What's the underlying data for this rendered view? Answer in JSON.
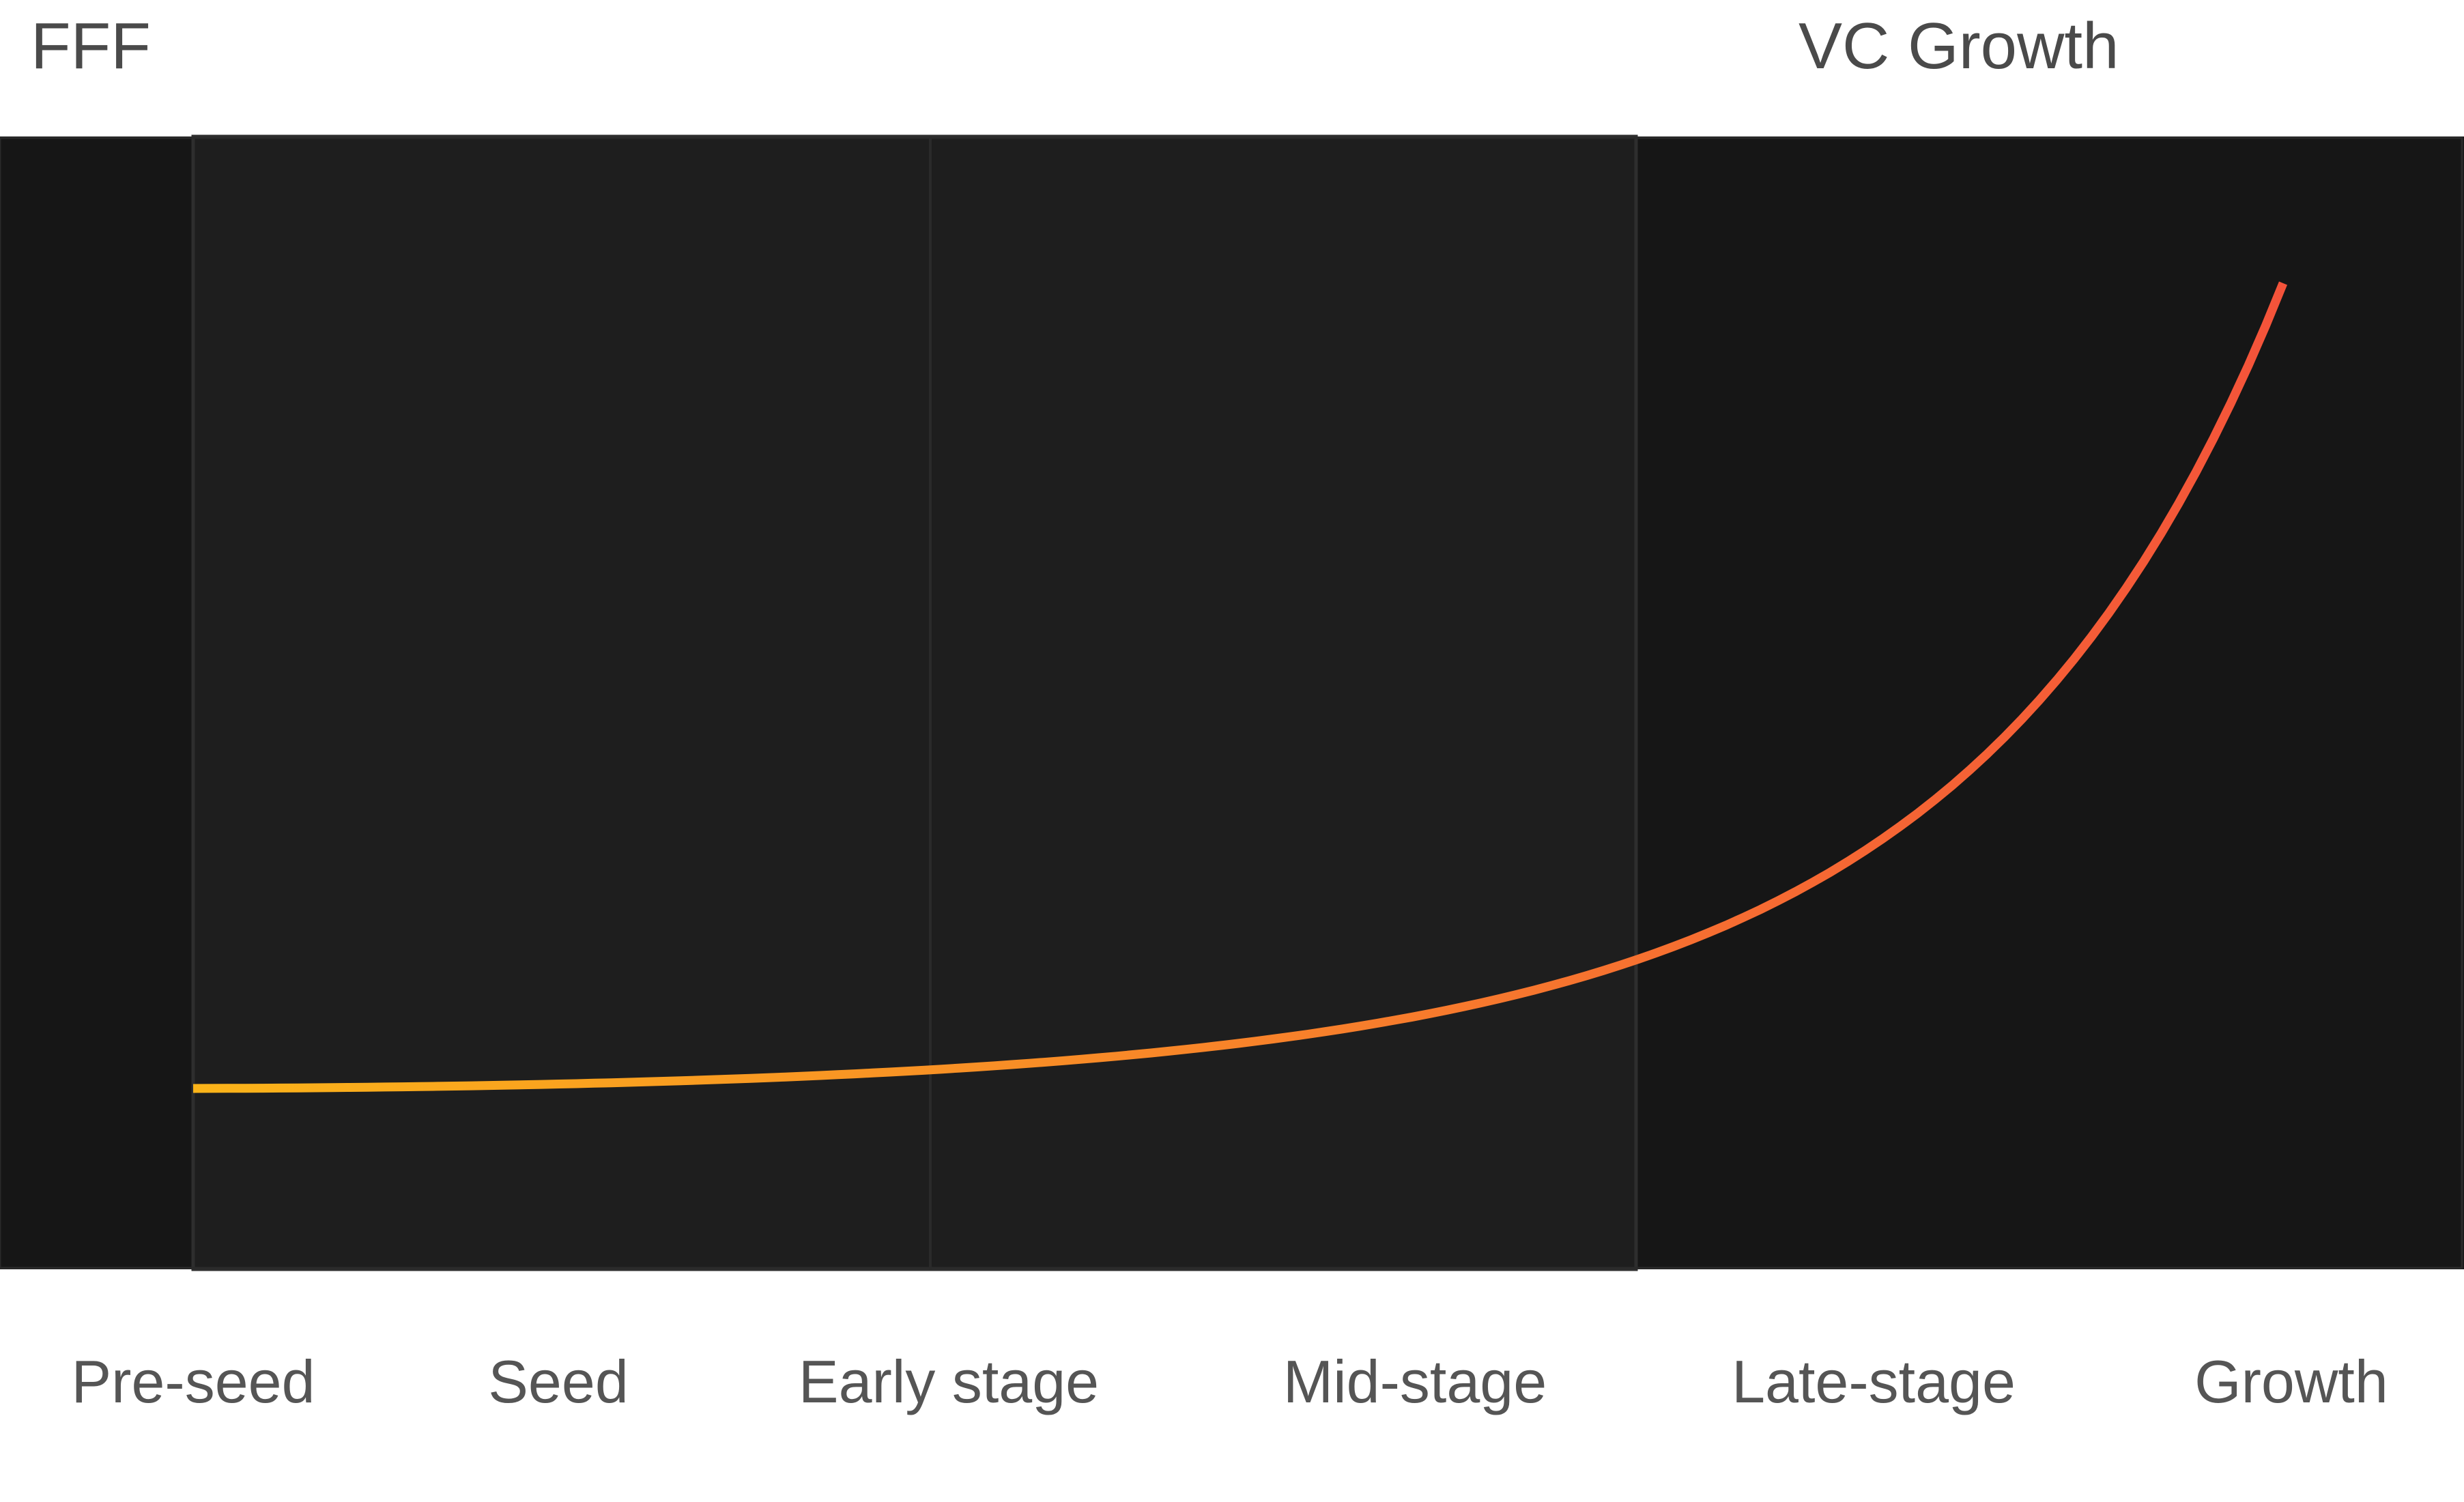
{
  "chart_data": {
    "type": "line",
    "title": "",
    "xlabel": "",
    "ylabel": "",
    "categories": [
      "Pre-seed",
      "Seed",
      "Early stage",
      "Mid-stage",
      "Late-stage",
      "Growth"
    ],
    "phases": [
      {
        "name": "FFF",
        "faint": false
      },
      {
        "name": "",
        "faint": true
      },
      {
        "name": "",
        "faint": true
      },
      {
        "name": "VC Growth",
        "faint": false
      }
    ],
    "phase_colors": [
      "#161616",
      "#1e1e1e",
      "#1e1e1e",
      "#161616"
    ],
    "curve": {
      "shape": "exponential",
      "color_start": "#fbb419",
      "color_end": "#f4533a"
    }
  }
}
